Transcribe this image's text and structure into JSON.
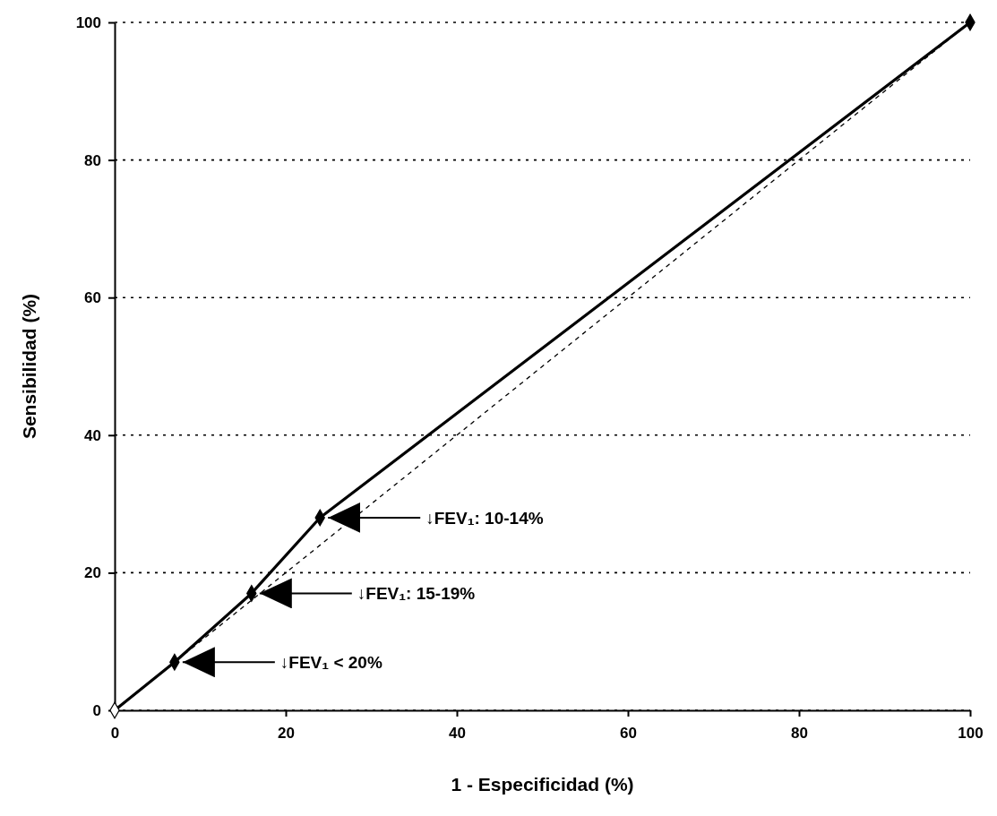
{
  "chart_data": {
    "type": "line",
    "xlabel": "1 - Especificidad (%)",
    "ylabel": "Sensibilidad (%)",
    "xlim": [
      0,
      100
    ],
    "ylim": [
      0,
      100
    ],
    "xticks": [
      0,
      20,
      40,
      60,
      80,
      100
    ],
    "yticks": [
      0,
      20,
      40,
      60,
      80,
      100
    ],
    "grid": "y",
    "series": [
      {
        "color": "#000000",
        "x": [
          0,
          7,
          16,
          24,
          100
        ],
        "values": [
          0,
          7,
          17,
          28,
          100
        ],
        "marker": "diamond",
        "line_style": "solid"
      },
      {
        "color": "#000000",
        "x": [
          0,
          100
        ],
        "values": [
          0,
          100
        ],
        "marker": "none",
        "line_style": "dashed"
      }
    ],
    "annotations": [
      {
        "text": "↓FEV₁ < 20%",
        "x": 7,
        "y": 7
      },
      {
        "text": "↓FEV₁: 15-19%",
        "x": 16,
        "y": 17
      },
      {
        "text": "↓FEV₁: 10-14%",
        "x": 24,
        "y": 28
      }
    ]
  }
}
